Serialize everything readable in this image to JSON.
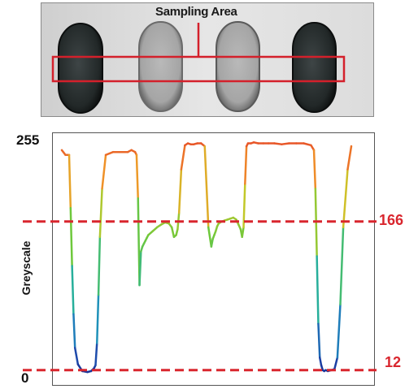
{
  "image_header": {
    "sampling_area_label": "Sampling Area"
  },
  "chart_data": {
    "type": "line",
    "title": "",
    "xlabel": "",
    "ylabel": "Greyscale",
    "ylim": [
      0,
      255
    ],
    "y_tick_labels": [
      "255",
      "0"
    ],
    "color_scale": "value-mapped gradient: low values blue, mid values green/yellow, high values orange/red",
    "grid": false,
    "threshold_lines": [
      {
        "value": 166,
        "label": "166",
        "color": "#d9262e",
        "style": "dashed"
      },
      {
        "value": 12,
        "label": "12",
        "color": "#d9262e",
        "style": "dashed"
      }
    ],
    "series": [
      {
        "x": [
          0,
          5,
          10,
          12,
          14,
          16,
          18,
          22,
          28,
          35,
          40,
          44,
          46,
          48,
          50,
          52,
          55,
          60,
          70,
          80,
          90,
          95,
          100,
          102,
          104,
          106,
          108,
          110,
          112,
          114,
          116,
          118,
          124,
          130,
          136,
          141,
          146,
          150,
          153,
          156,
          158,
          160,
          163,
          168,
          172,
          176,
          180,
          185,
          190,
          195,
          200,
          204,
          206,
          208,
          210,
          212,
          214,
          216,
          218,
          222,
          226,
          230,
          234,
          238,
          241,
          244,
          246,
          248,
          250,
          252,
          254,
          258,
          262,
          268,
          275,
          282,
          290,
          300,
          310,
          320,
          330,
          340,
          344,
          346,
          348,
          350,
          352,
          354,
          356,
          358,
          360,
          363,
          368,
          372,
          376,
          380,
          384,
          390,
          395
        ],
        "y": [
          240,
          235,
          235,
          180,
          120,
          70,
          35,
          18,
          11,
          10,
          11,
          14,
          17,
          40,
          90,
          150,
          200,
          235,
          238,
          238,
          238,
          240,
          238,
          235,
          190,
          100,
          135,
          140,
          143,
          146,
          149,
          152,
          156,
          160,
          163,
          165,
          164,
          160,
          150,
          152,
          158,
          175,
          220,
          245,
          247,
          246,
          246,
          247,
          247,
          244,
          160,
          140,
          148,
          152,
          156,
          161,
          164,
          165,
          166,
          167,
          168,
          169,
          170,
          168,
          163,
          158,
          150,
          160,
          205,
          244,
          247,
          247,
          248,
          247,
          247,
          247,
          247,
          246,
          247,
          247,
          247,
          245,
          240,
          200,
          130,
          60,
          25,
          17,
          12,
          11,
          12,
          11,
          12,
          13,
          25,
          80,
          160,
          220,
          244
        ]
      }
    ]
  }
}
